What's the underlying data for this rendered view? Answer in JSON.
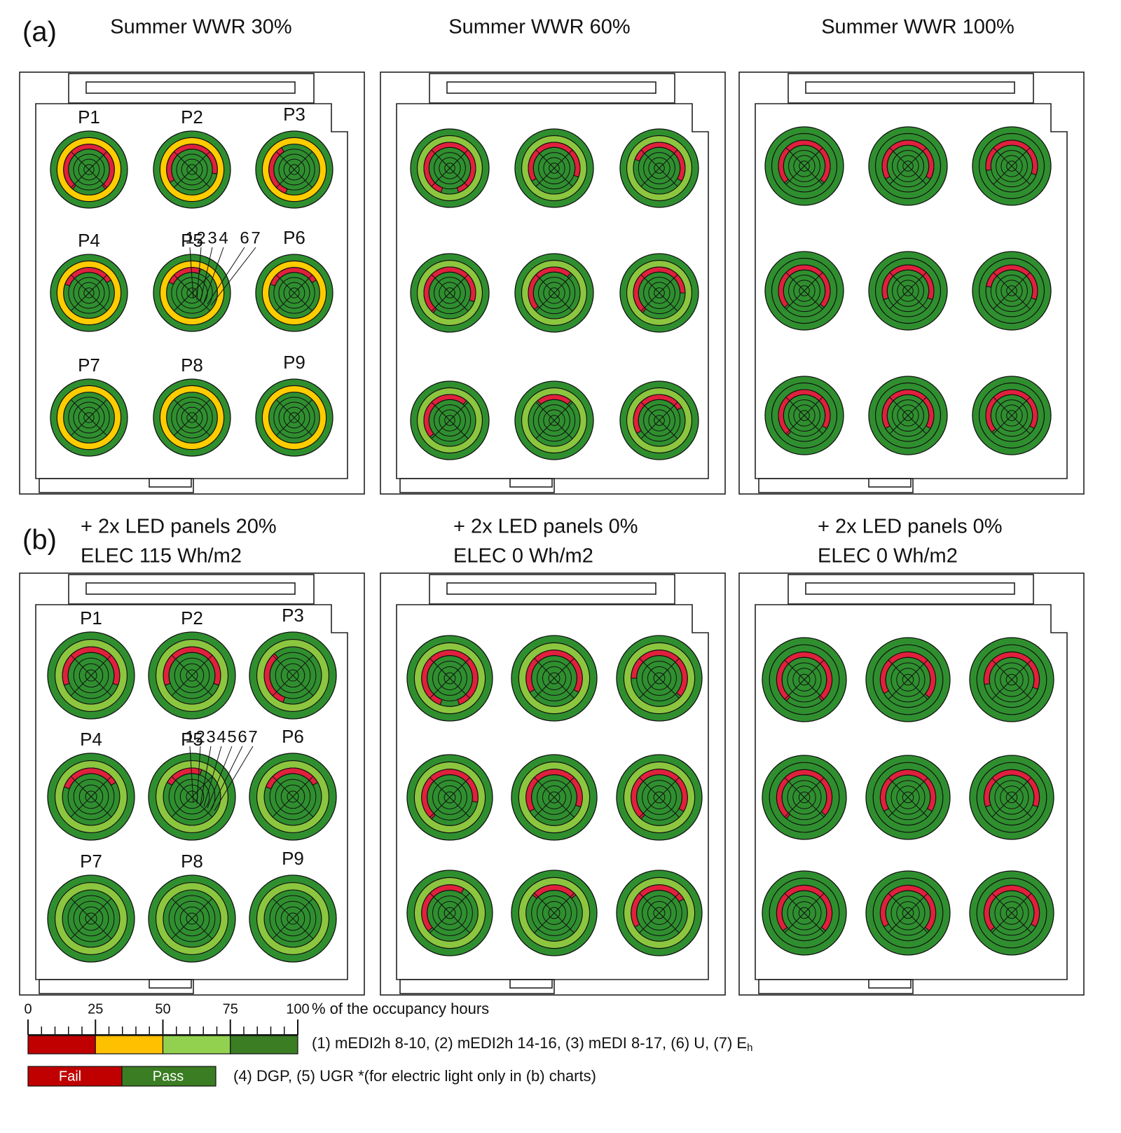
{
  "figure": {
    "row_labels": [
      "(a)",
      "(b)"
    ],
    "panels": [
      {
        "title": "Summer WWR 30%",
        "ring6_color": "#ffcc00",
        "ring_labels": [
          "1",
          "2",
          "3",
          "4",
          "6",
          "7"
        ],
        "circles": [
          {
            "label": "P1",
            "fail_arc": [
              220,
              140
            ]
          },
          {
            "label": "P2",
            "fail_arc": [
              240,
              100
            ]
          },
          {
            "label": "P3",
            "fail_arc": [
              200,
              330
            ]
          },
          {
            "label": "P4",
            "fail_arc": [
              290,
              60
            ]
          },
          {
            "label": "P5",
            "fail_arc": [
              295,
              20
            ]
          },
          {
            "label": "P6",
            "fail_arc": [
              290,
              60
            ]
          },
          {
            "label": "P7"
          },
          {
            "label": "P8"
          },
          {
            "label": "P9"
          }
        ]
      },
      {
        "title": "Summer WWR 60%",
        "ring6_color": "#8cc63f",
        "circles": [
          {
            "fail_arc": [
              200,
              160
            ]
          },
          {
            "fail_arc": [
              240,
              110
            ]
          },
          {
            "fail_arc": [
              290,
              120
            ]
          },
          {
            "fail_arc": [
              220,
              110
            ]
          },
          {
            "fail_arc": [
              230,
              40
            ]
          },
          {
            "fail_arc": [
              220,
              90
            ]
          },
          {
            "fail_arc": [
              230,
              40
            ]
          },
          {
            "fail_arc": [
              320,
              40
            ]
          },
          {
            "fail_arc": [
              240,
              60
            ]
          }
        ]
      },
      {
        "title": "Summer WWR 100%",
        "ring6_color": "#2f8f2f",
        "circles": [
          {
            "fail_arc": [
              230,
              130
            ]
          },
          {
            "fail_arc": [
              240,
              120
            ]
          },
          {
            "fail_arc": [
              260,
              110
            ]
          },
          {
            "fail_arc": [
              230,
              130
            ]
          },
          {
            "fail_arc": [
              250,
              110
            ]
          },
          {
            "fail_arc": [
              280,
              110
            ]
          },
          {
            "fail_arc": [
              220,
              120
            ]
          },
          {
            "fail_arc": [
              240,
              120
            ]
          },
          {
            "fail_arc": [
              230,
              120
            ]
          }
        ]
      },
      {
        "title": "+ 2x LED panels 20%",
        "subtitle": "ELEC 115 Wh/m2",
        "ring6_color": "#8cc63f",
        "ring_labels": [
          "1",
          "2",
          "3",
          "4",
          "5",
          "6",
          "7"
        ],
        "circles": [
          {
            "label": "P1",
            "fail_arc": [
              250,
              110
            ]
          },
          {
            "label": "P2",
            "fail_arc": [
              250,
              110
            ]
          },
          {
            "label": "P3",
            "fail_arc": [
              200,
              320
            ]
          },
          {
            "label": "P4",
            "fail_arc": [
              290,
              60
            ]
          },
          {
            "label": "P5",
            "fail_arc": [
              300,
              20
            ]
          },
          {
            "label": "P6",
            "fail_arc": [
              290,
              60
            ]
          },
          {
            "label": "P7"
          },
          {
            "label": "P8"
          },
          {
            "label": "P9"
          }
        ]
      },
      {
        "title": "+ 2x LED panels 0%",
        "subtitle": "ELEC 0 Wh/m2",
        "ring6_color": "#8cc63f",
        "circles": [
          {
            "fail_arc": [
              200,
              160
            ]
          },
          {
            "fail_arc": [
              240,
              120
            ]
          },
          {
            "fail_arc": [
              270,
              130
            ]
          },
          {
            "fail_arc": [
              220,
              100
            ]
          },
          {
            "fail_arc": [
              240,
              110
            ]
          },
          {
            "fail_arc": [
              220,
              120
            ]
          },
          {
            "fail_arc": [
              230,
              30
            ]
          },
          {
            "fail_arc": [
              310,
              50
            ]
          },
          {
            "fail_arc": [
              240,
              60
            ]
          }
        ]
      },
      {
        "title": "+ 2x LED panels 0%",
        "subtitle": "ELEC 0 Wh/m2",
        "ring6_color": "#2f8f2f",
        "circles": [
          {
            "fail_arc": [
              220,
              140
            ]
          },
          {
            "fail_arc": [
              240,
              130
            ]
          },
          {
            "fail_arc": [
              260,
              110
            ]
          },
          {
            "fail_arc": [
              220,
              130
            ]
          },
          {
            "fail_arc": [
              240,
              120
            ]
          },
          {
            "fail_arc": [
              250,
              110
            ]
          },
          {
            "fail_arc": [
              230,
              130
            ]
          },
          {
            "fail_arc": [
              240,
              130
            ]
          },
          {
            "fail_arc": [
              230,
              120
            ]
          }
        ]
      }
    ],
    "legend": {
      "xlim": [
        0,
        100
      ],
      "ticks": [
        0,
        25,
        50,
        75,
        100
      ],
      "unit_label": "% of the occupancy hours",
      "bands": [
        {
          "from": 0,
          "to": 25,
          "color": "#c00000"
        },
        {
          "from": 25,
          "to": 50,
          "color": "#ffc000"
        },
        {
          "from": 50,
          "to": 75,
          "color": "#92d050"
        },
        {
          "from": 75,
          "to": 100,
          "color": "#3a7d22"
        }
      ],
      "bands_text": "(1) mEDI2h 8-10, (2) mEDI2h 14-16, (3) mEDI 8-17, (6) U, (7) E",
      "bands_text_subscript": "h",
      "fail_pass": [
        {
          "label": "Fail",
          "color": "#c00000"
        },
        {
          "label": "Pass",
          "color": "#3a7d22"
        }
      ],
      "fail_pass_text": "(4) DGP, (5) UGR *(for electric light only in (b) charts)"
    }
  }
}
